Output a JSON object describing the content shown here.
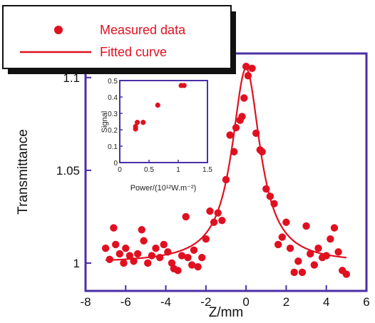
{
  "colors": {
    "frame": "#4b2fa6",
    "series": "#e01020",
    "text": "#111111",
    "legend_border": "#111111"
  },
  "chart_data": [
    {
      "type": "scatter",
      "xlabel": "Z/mm",
      "ylabel": "Transmittance",
      "xlim": [
        -8,
        6
      ],
      "ylim": [
        0.985,
        1.113
      ],
      "x_ticks": [
        -8,
        -6,
        -4,
        -2,
        0,
        2,
        4,
        6
      ],
      "y_ticks": [
        1,
        1.05,
        1.1
      ],
      "x_tick_labels": [
        "-8",
        "-6",
        "-4",
        "-2",
        "0",
        "2",
        "4",
        "6"
      ],
      "y_tick_labels": [
        "1",
        "1.05",
        "1.1"
      ],
      "legend": {
        "position": "top-left",
        "entries": [
          "Measured data",
          "Fitted curve"
        ]
      },
      "series": [
        {
          "name": "Measured data",
          "marker": "dot",
          "points": [
            [
              -7.0,
              1.008
            ],
            [
              -6.8,
              1.002
            ],
            [
              -6.6,
              1.019
            ],
            [
              -6.5,
              1.01
            ],
            [
              -6.3,
              1.005
            ],
            [
              -6.1,
              1.0
            ],
            [
              -6.0,
              1.008
            ],
            [
              -5.8,
              1.004
            ],
            [
              -5.6,
              1.001
            ],
            [
              -5.4,
              1.005
            ],
            [
              -5.2,
              1.018
            ],
            [
              -5.1,
              1.012
            ],
            [
              -4.9,
              1.0
            ],
            [
              -4.7,
              1.004
            ],
            [
              -4.5,
              1.008
            ],
            [
              -4.3,
              1.003
            ],
            [
              -4.1,
              1.01
            ],
            [
              -3.9,
              1.006
            ],
            [
              -3.7,
              1.0
            ],
            [
              -3.6,
              0.997
            ],
            [
              -3.4,
              0.996
            ],
            [
              -3.2,
              1.004
            ],
            [
              -3.0,
              1.025
            ],
            [
              -2.9,
              1.003
            ],
            [
              -2.7,
              0.999
            ],
            [
              -2.6,
              1.007
            ],
            [
              -2.4,
              0.998
            ],
            [
              -2.2,
              1.003
            ],
            [
              -2.0,
              1.013
            ],
            [
              -1.8,
              1.028
            ],
            [
              -1.6,
              1.022
            ],
            [
              -1.4,
              1.027
            ],
            [
              -1.2,
              1.023
            ],
            [
              -1.0,
              1.045
            ],
            [
              -0.8,
              1.069
            ],
            [
              -0.6,
              1.06
            ],
            [
              -0.5,
              1.073
            ],
            [
              -0.3,
              1.077
            ],
            [
              -0.2,
              1.079
            ],
            [
              -0.1,
              1.089
            ],
            [
              0.0,
              1.106
            ],
            [
              0.1,
              1.101
            ],
            [
              0.3,
              1.105
            ],
            [
              0.5,
              1.07
            ],
            [
              0.7,
              1.061
            ],
            [
              0.8,
              1.06
            ],
            [
              1.0,
              1.04
            ],
            [
              1.2,
              1.036
            ],
            [
              1.4,
              1.032
            ],
            [
              1.6,
              1.01
            ],
            [
              1.8,
              1.014
            ],
            [
              2.0,
              1.022
            ],
            [
              2.2,
              1.008
            ],
            [
              2.4,
              0.995
            ],
            [
              2.6,
              1.001
            ],
            [
              2.8,
              0.995
            ],
            [
              3.0,
              1.02
            ],
            [
              3.2,
              1.005
            ],
            [
              3.4,
              0.999
            ],
            [
              3.6,
              1.008
            ],
            [
              3.8,
              1.003
            ],
            [
              4.0,
              1.004
            ],
            [
              4.2,
              1.013
            ],
            [
              4.4,
              1.019
            ],
            [
              4.6,
              1.006
            ],
            [
              4.8,
              0.996
            ],
            [
              5.0,
              0.994
            ]
          ]
        },
        {
          "name": "Fitted curve",
          "line": "solid",
          "model": "lorentzian",
          "baseline": 1.0,
          "peak": 0.105,
          "center": 0.0,
          "half_width": 0.85,
          "x_range": [
            -7.0,
            5.0
          ]
        }
      ]
    },
    {
      "type": "scatter",
      "position": "inset-top-left",
      "xlabel": "Power/(10¹²W.m⁻²)",
      "ylabel": "Signal",
      "xlim": [
        0,
        1.5
      ],
      "ylim": [
        0,
        0.5
      ],
      "x_ticks": [
        0,
        0.5,
        1,
        1.5
      ],
      "y_ticks": [
        0,
        0.1,
        0.2,
        0.3,
        0.4,
        0.5
      ],
      "x_tick_labels": [
        "0",
        "0.5",
        "1",
        "1.5"
      ],
      "y_tick_labels": [
        "0",
        "0.1",
        "0.2",
        "0.3",
        "0.4",
        "0.5"
      ],
      "series": [
        {
          "points": [
            [
              0.27,
              0.22
            ],
            [
              0.27,
              0.205
            ],
            [
              0.3,
              0.245
            ],
            [
              0.4,
              0.245
            ],
            [
              0.65,
              0.35
            ],
            [
              1.05,
              0.47
            ],
            [
              1.1,
              0.47
            ]
          ]
        }
      ]
    }
  ]
}
